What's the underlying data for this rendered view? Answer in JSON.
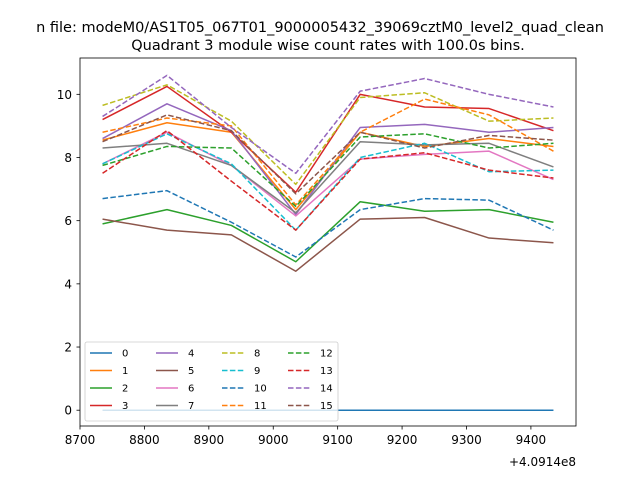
{
  "chart_data": {
    "type": "line",
    "suptitle": "n file: modeM0/AS1T05_067T01_9000005432_39069cztM0_level2_quad_clean",
    "title": "Quadrant 3 module wise count rates with 100.0s bins.",
    "xlabel": "",
    "ylabel": "",
    "offset_text": "+4.0914e8",
    "xlim": [
      8700,
      9470
    ],
    "ylim": [
      -0.5,
      11.15
    ],
    "x_ticks": [
      8700,
      8800,
      8900,
      9000,
      9100,
      9200,
      9300,
      9400
    ],
    "x_tick_labels": [
      "8700",
      "8800",
      "8900",
      "9000",
      "9100",
      "9200",
      "9300",
      "9400"
    ],
    "y_ticks": [
      0,
      2,
      4,
      6,
      8,
      10
    ],
    "y_tick_labels": [
      "0",
      "2",
      "4",
      "6",
      "8",
      "10"
    ],
    "grid": false,
    "legend_position": "lower-left",
    "x": [
      8735,
      8835,
      8935,
      9035,
      9135,
      9235,
      9335,
      9435
    ],
    "series": [
      {
        "name": "0",
        "color": "#1f77b4",
        "dash": "solid",
        "values": [
          0,
          0,
          0,
          0,
          0,
          0,
          0,
          0
        ]
      },
      {
        "name": "1",
        "color": "#ff7f0e",
        "dash": "solid",
        "values": [
          8.55,
          9.1,
          8.8,
          6.35,
          8.8,
          8.35,
          8.6,
          8.35
        ]
      },
      {
        "name": "2",
        "color": "#2ca02c",
        "dash": "solid",
        "values": [
          5.9,
          6.35,
          5.85,
          4.7,
          6.6,
          6.3,
          6.35,
          5.95
        ]
      },
      {
        "name": "3",
        "color": "#d62728",
        "dash": "solid",
        "values": [
          9.2,
          10.25,
          8.8,
          6.9,
          10.0,
          9.6,
          9.55,
          8.85
        ]
      },
      {
        "name": "4",
        "color": "#9467bd",
        "dash": "solid",
        "values": [
          8.6,
          9.7,
          8.85,
          6.2,
          8.95,
          9.05,
          8.8,
          8.95
        ]
      },
      {
        "name": "5",
        "color": "#8c564b",
        "dash": "solid",
        "values": [
          6.05,
          5.7,
          5.55,
          4.4,
          6.05,
          6.1,
          5.45,
          5.3
        ]
      },
      {
        "name": "6",
        "color": "#e377c2",
        "dash": "solid",
        "values": [
          7.8,
          8.8,
          7.75,
          6.15,
          7.95,
          8.1,
          8.2,
          7.3
        ]
      },
      {
        "name": "7",
        "color": "#7f7f7f",
        "dash": "solid",
        "values": [
          8.3,
          8.45,
          7.75,
          6.25,
          8.5,
          8.4,
          8.45,
          7.7
        ]
      },
      {
        "name": "8",
        "color": "#bcbd22",
        "dash": "dashed",
        "values": [
          9.65,
          10.3,
          9.15,
          7.15,
          9.9,
          10.05,
          9.15,
          9.25
        ]
      },
      {
        "name": "9",
        "color": "#17becf",
        "dash": "dashed",
        "values": [
          7.8,
          8.75,
          7.8,
          5.7,
          8.0,
          8.45,
          7.55,
          7.6
        ]
      },
      {
        "name": "10",
        "color": "#1f77b4",
        "dash": "dashed",
        "values": [
          6.7,
          6.95,
          5.95,
          4.85,
          6.35,
          6.7,
          6.65,
          5.7
        ]
      },
      {
        "name": "11",
        "color": "#ff7f0e",
        "dash": "dashed",
        "values": [
          8.8,
          9.25,
          9.0,
          6.5,
          8.8,
          9.85,
          9.35,
          8.2
        ]
      },
      {
        "name": "12",
        "color": "#2ca02c",
        "dash": "dashed",
        "values": [
          7.75,
          8.35,
          8.3,
          6.45,
          8.65,
          8.75,
          8.3,
          8.45
        ]
      },
      {
        "name": "13",
        "color": "#d62728",
        "dash": "dashed",
        "values": [
          7.5,
          8.85,
          7.25,
          5.7,
          7.95,
          8.15,
          7.6,
          7.35
        ]
      },
      {
        "name": "14",
        "color": "#9467bd",
        "dash": "dashed",
        "values": [
          9.3,
          10.6,
          8.95,
          7.5,
          10.1,
          10.5,
          10.0,
          9.6
        ]
      },
      {
        "name": "15",
        "color": "#8c564b",
        "dash": "dashed",
        "values": [
          8.5,
          9.35,
          8.85,
          6.85,
          8.8,
          8.3,
          8.7,
          8.55
        ]
      }
    ]
  }
}
